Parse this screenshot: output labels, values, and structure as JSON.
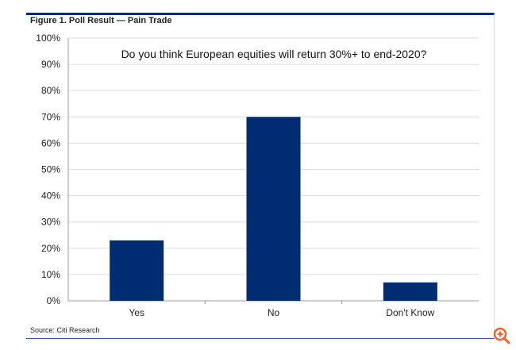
{
  "figure_title": "Figure 1. Poll Result — Pain Trade",
  "source": "Source: Citi Research",
  "zoom_icon": "zoom-in-icon",
  "chart_data": {
    "type": "bar",
    "title": "Do you think European equities will return 30%+ to end-2020?",
    "categories": [
      "Yes",
      "No",
      "Don't Know"
    ],
    "values": [
      23,
      70,
      7
    ],
    "unit": "%",
    "ylim": [
      0,
      100
    ],
    "yticks": [
      "0%",
      "10%",
      "20%",
      "30%",
      "40%",
      "50%",
      "60%",
      "70%",
      "80%",
      "90%",
      "100%"
    ],
    "grid": true,
    "bar_color": "#002d72",
    "xlabel": "",
    "ylabel": ""
  }
}
